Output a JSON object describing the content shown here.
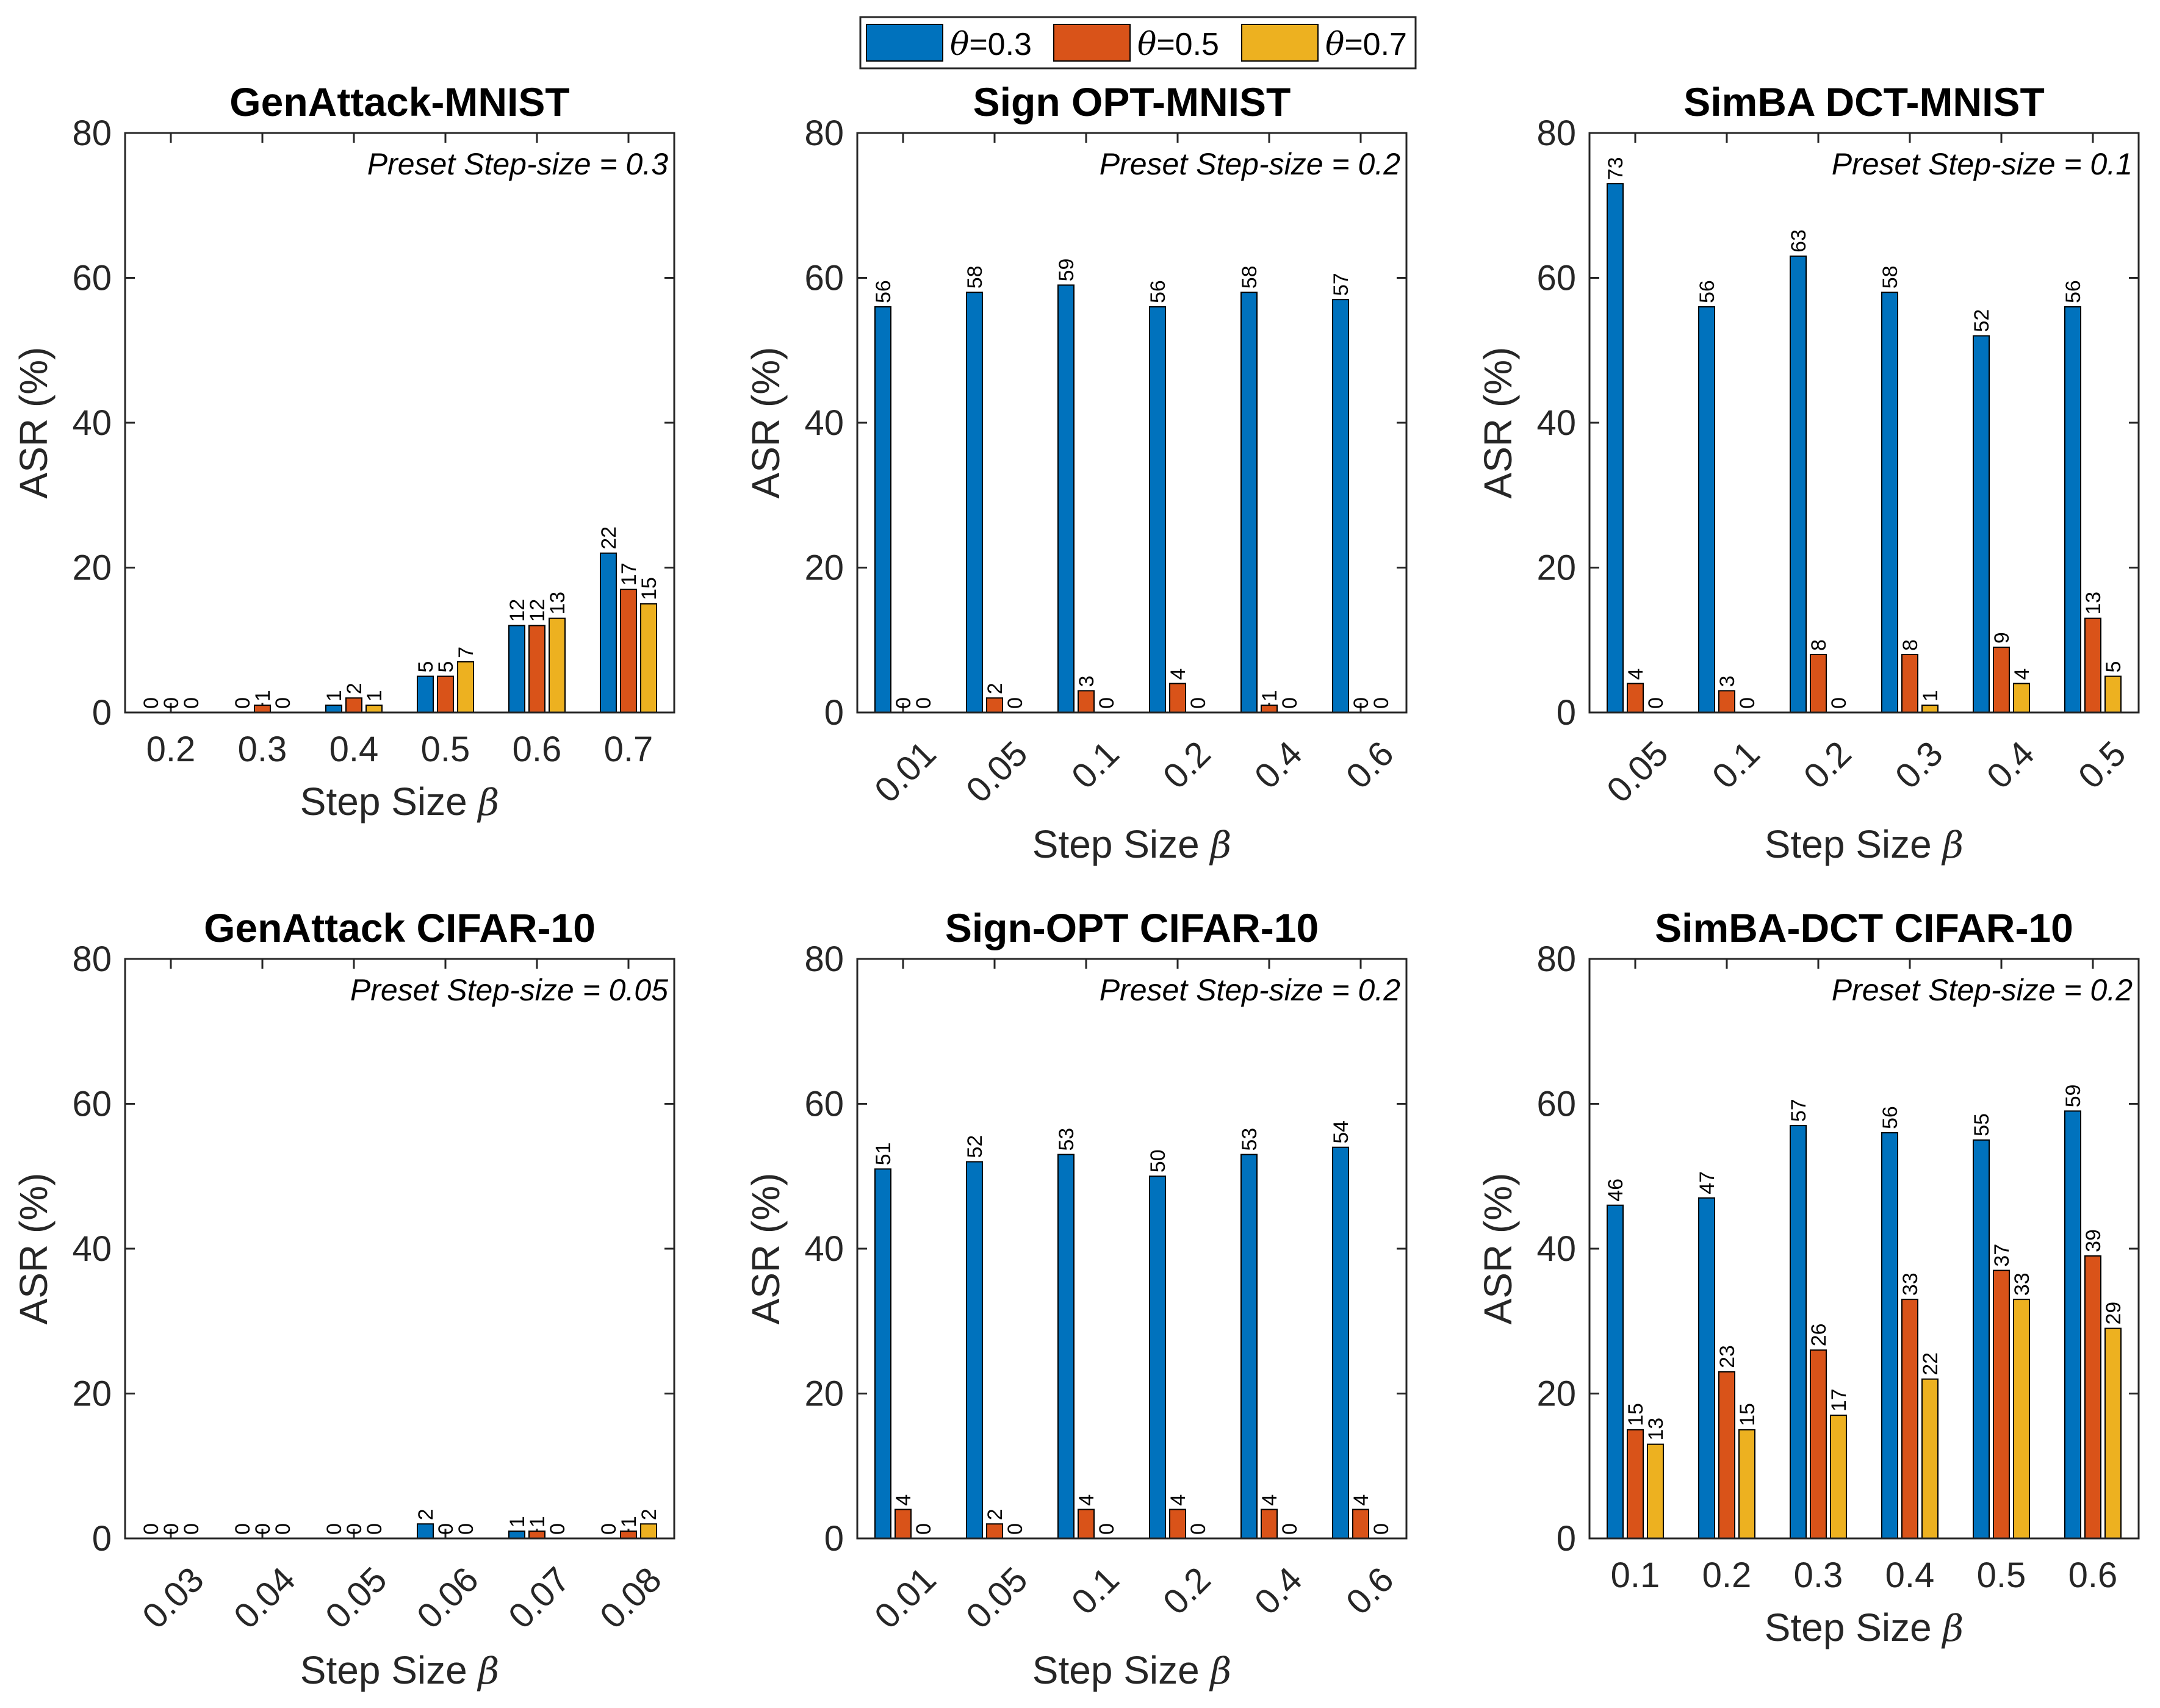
{
  "colors": {
    "theta03": "#0072BD",
    "theta05": "#D95319",
    "theta07": "#EDB120",
    "axis": "#262626"
  },
  "legend": [
    {
      "symbol": "θ",
      "label": "=0.3"
    },
    {
      "symbol": "θ",
      "label": "=0.5"
    },
    {
      "symbol": "θ",
      "label": "=0.7"
    }
  ],
  "chart_data": [
    {
      "type": "bar",
      "title": "GenAttack-MNIST",
      "preset": "Preset Step-size = 0.3",
      "xlabel": "Step Size",
      "xsymbol": "β",
      "ylabel": "ASR (%)",
      "ylim": [
        0,
        80
      ],
      "yticks": [
        "0",
        "20",
        "40",
        "60",
        "80"
      ],
      "xtick_rotation": 0,
      "categories": [
        "0.2",
        "0.3",
        "0.4",
        "0.5",
        "0.6",
        "0.7"
      ],
      "series": [
        {
          "name": "θ=0.3",
          "values": [
            0,
            0,
            1,
            5,
            12,
            22
          ]
        },
        {
          "name": "θ=0.5",
          "values": [
            0,
            1,
            2,
            5,
            12,
            17
          ]
        },
        {
          "name": "θ=0.7",
          "values": [
            0,
            0,
            1,
            7,
            13,
            15
          ]
        }
      ]
    },
    {
      "type": "bar",
      "title": "Sign OPT-MNIST",
      "preset": "Preset Step-size = 0.2",
      "xlabel": "Step Size",
      "xsymbol": "β",
      "ylabel": "ASR (%)",
      "ylim": [
        0,
        80
      ],
      "yticks": [
        "0",
        "20",
        "40",
        "60",
        "80"
      ],
      "xtick_rotation": -45,
      "categories": [
        "0.01",
        "0.05",
        "0.1",
        "0.2",
        "0.4",
        "0.6"
      ],
      "series": [
        {
          "name": "θ=0.3",
          "values": [
            56,
            58,
            59,
            56,
            58,
            57
          ]
        },
        {
          "name": "θ=0.5",
          "values": [
            0,
            2,
            3,
            4,
            1,
            0
          ]
        },
        {
          "name": "θ=0.7",
          "values": [
            0,
            0,
            0,
            0,
            0,
            0
          ]
        }
      ]
    },
    {
      "type": "bar",
      "title": "SimBA DCT-MNIST",
      "preset": "Preset Step-size = 0.1",
      "xlabel": "Step Size",
      "xsymbol": "β",
      "ylabel": "ASR (%)",
      "ylim": [
        0,
        80
      ],
      "yticks": [
        "0",
        "20",
        "40",
        "60",
        "80"
      ],
      "xtick_rotation": -45,
      "categories": [
        "0.05",
        "0.1",
        "0.2",
        "0.3",
        "0.4",
        "0.5"
      ],
      "series": [
        {
          "name": "θ=0.3",
          "values": [
            73,
            56,
            63,
            58,
            52,
            56
          ]
        },
        {
          "name": "θ=0.5",
          "values": [
            4,
            3,
            8,
            8,
            9,
            13
          ]
        },
        {
          "name": "θ=0.7",
          "values": [
            0,
            0,
            0,
            1,
            4,
            5
          ]
        }
      ]
    },
    {
      "type": "bar",
      "title": "GenAttack CIFAR-10",
      "preset": "Preset Step-size = 0.05",
      "xlabel": "Step Size",
      "xsymbol": "β",
      "ylabel": "ASR (%)",
      "ylim": [
        0,
        80
      ],
      "yticks": [
        "0",
        "20",
        "40",
        "60",
        "80"
      ],
      "xtick_rotation": -45,
      "categories": [
        "0.03",
        "0.04",
        "0.05",
        "0.06",
        "0.07",
        "0.08"
      ],
      "series": [
        {
          "name": "θ=0.3",
          "values": [
            0,
            0,
            0,
            2,
            1,
            0
          ]
        },
        {
          "name": "θ=0.5",
          "values": [
            0,
            0,
            0,
            0,
            1,
            1
          ]
        },
        {
          "name": "θ=0.7",
          "values": [
            0,
            0,
            0,
            0,
            0,
            2
          ]
        }
      ]
    },
    {
      "type": "bar",
      "title": "Sign-OPT CIFAR-10",
      "preset": "Preset Step-size = 0.2",
      "xlabel": "Step Size",
      "xsymbol": "β",
      "ylabel": "ASR (%)",
      "ylim": [
        0,
        80
      ],
      "yticks": [
        "0",
        "20",
        "40",
        "60",
        "80"
      ],
      "xtick_rotation": -45,
      "categories": [
        "0.01",
        "0.05",
        "0.1",
        "0.2",
        "0.4",
        "0.6"
      ],
      "series": [
        {
          "name": "θ=0.3",
          "values": [
            51,
            52,
            53,
            50,
            53,
            54
          ]
        },
        {
          "name": "θ=0.5",
          "values": [
            4,
            2,
            4,
            4,
            4,
            4
          ]
        },
        {
          "name": "θ=0.7",
          "values": [
            0,
            0,
            0,
            0,
            0,
            0
          ]
        }
      ]
    },
    {
      "type": "bar",
      "title": "SimBA-DCT CIFAR-10",
      "preset": "Preset Step-size = 0.2",
      "xlabel": "Step Size",
      "xsymbol": "β",
      "ylabel": "ASR (%)",
      "ylim": [
        0,
        80
      ],
      "yticks": [
        "0",
        "20",
        "40",
        "60",
        "80"
      ],
      "xtick_rotation": 0,
      "categories": [
        "0.1",
        "0.2",
        "0.3",
        "0.4",
        "0.5",
        "0.6"
      ],
      "series": [
        {
          "name": "θ=0.3",
          "values": [
            46,
            47,
            57,
            56,
            55,
            59
          ]
        },
        {
          "name": "θ=0.5",
          "values": [
            15,
            23,
            26,
            33,
            37,
            39
          ]
        },
        {
          "name": "θ=0.7",
          "values": [
            13,
            15,
            17,
            22,
            33,
            29
          ]
        }
      ]
    }
  ]
}
